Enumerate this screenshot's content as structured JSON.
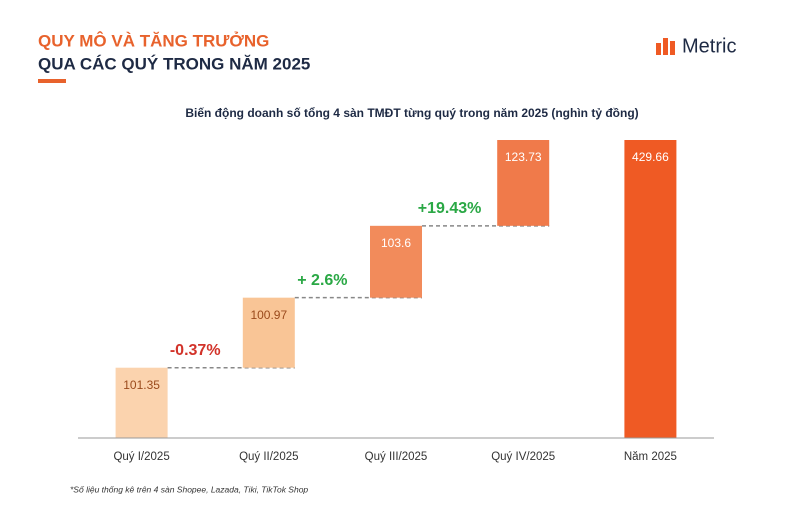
{
  "header": {
    "title_line1": "QUY MÔ VÀ TĂNG TRƯỞNG",
    "title_line2": "QUA CÁC QUÝ TRONG NĂM 2025",
    "brand": "Metric"
  },
  "chart_data": {
    "type": "waterfall",
    "title": "Biến động doanh số tổng 4 sàn TMĐT từng quý trong năm 2025 (nghìn tỷ đồng)",
    "categories": [
      "Quý I/2025",
      "Quý II/2025",
      "Quý III/2025",
      "Quý IV/2025",
      "Năm 2025"
    ],
    "values": [
      101.35,
      100.97,
      103.6,
      123.73,
      429.66
    ],
    "measure": [
      "relative",
      "relative",
      "relative",
      "relative",
      "total"
    ],
    "colors": [
      "#fbd3ae",
      "#f9c596",
      "#f28b5b",
      "#f07a4a",
      "#ef5a24"
    ],
    "value_label_colors": [
      "#9a4a1c",
      "#9a4a1c",
      "#ffffff",
      "#ffffff",
      "#ffffff"
    ],
    "annotations": [
      {
        "text": "-0.37%",
        "color": "#d2332a"
      },
      {
        "text": "+ 2.6%",
        "color": "#2aa845"
      },
      {
        "text": "+19.43%",
        "color": "#2aa845"
      }
    ]
  },
  "footnote": "*Số liệu thống kê trên 4 sàn Shopee, Lazada, Tiki, TikTok Shop"
}
